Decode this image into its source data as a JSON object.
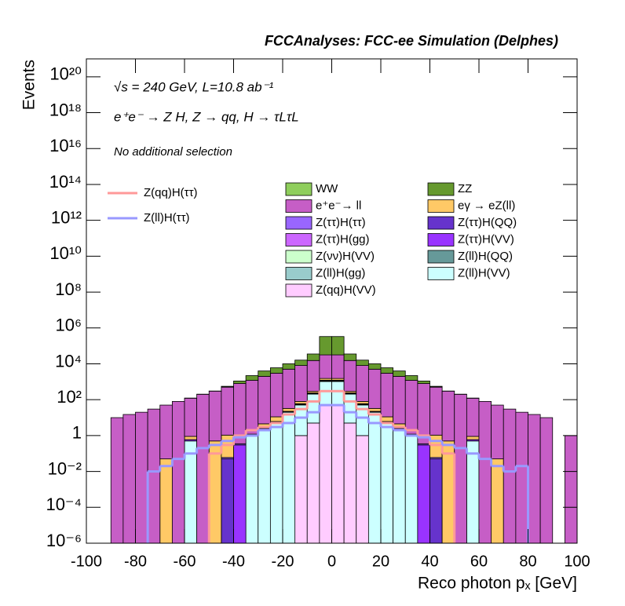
{
  "chart_data": {
    "type": "stacked-histogram",
    "title": "FCCAnalyses: FCC-ee Simulation (Delphes)",
    "x_label": "Reco photon pₓ [GeV]",
    "y_label": "Events",
    "annotations": [
      "√s = 240 GeV, L=10.8 ab⁻¹",
      "e⁺e⁻ → Z H, Z → qq, H → τLτL",
      "No additional selection"
    ],
    "log_y": true,
    "bins": [
      -100,
      -95,
      -90,
      -85,
      -80,
      -75,
      -70,
      -65,
      -60,
      -55,
      -50,
      -45,
      -40,
      -35,
      -30,
      -25,
      -20,
      -15,
      -10,
      -5,
      0,
      5,
      10,
      15,
      20,
      25,
      30,
      35,
      40,
      45,
      50,
      55,
      60,
      65,
      70,
      75,
      80,
      85,
      90,
      95,
      100
    ],
    "xlim": [
      -100,
      100
    ],
    "xticks": [
      -100,
      -80,
      -60,
      -40,
      -20,
      0,
      20,
      40,
      60,
      80,
      100
    ],
    "ylim": [
      1e-06,
      1e+21
    ],
    "yticks": [
      {
        "value": 1e-06,
        "label": "10⁻⁶"
      },
      {
        "value": 0.0001,
        "label": "10⁻⁴"
      },
      {
        "value": 0.01,
        "label": "10⁻²"
      },
      1,
      {
        "value": 100,
        "label": "10²"
      },
      {
        "value": 10000.0,
        "label": "10⁴"
      },
      {
        "value": 1000000.0,
        "label": "10⁶"
      },
      {
        "value": 100000000.0,
        "label": "10⁸"
      },
      {
        "value": 10000000000.0,
        "label": "10¹⁰"
      },
      {
        "value": 1000000000000.0,
        "label": "10¹²"
      },
      {
        "value": 100000000000000.0,
        "label": "10¹⁴"
      },
      {
        "value": 1e+16,
        "label": "10¹⁶"
      },
      {
        "value": 1e+18,
        "label": "10¹⁸"
      },
      {
        "value": 1e+20,
        "label": "10²⁰"
      }
    ],
    "series": [
      {
        "name": "WW",
        "color": "#8fce5c",
        "values": [
          0,
          0,
          0,
          0,
          0,
          0,
          0,
          0,
          2,
          2,
          2,
          2,
          0,
          0,
          0,
          0,
          0,
          0,
          0,
          0,
          0,
          0,
          0,
          0,
          0,
          0,
          0,
          0,
          2,
          2,
          2,
          2,
          0,
          0,
          0,
          0,
          0,
          0,
          0,
          0
        ]
      },
      {
        "name": "ZZ",
        "color": "#66992e",
        "values": [
          0,
          0,
          0,
          0,
          0,
          0,
          0,
          0,
          0,
          0,
          0,
          50,
          300,
          1000,
          2000,
          3000,
          5000,
          8000,
          20000,
          300000,
          300000,
          20000,
          8000,
          5000,
          3000,
          2000,
          1000,
          300,
          50,
          0,
          0,
          0,
          0,
          0,
          0,
          0,
          0,
          0,
          0,
          0
        ]
      },
      {
        "name": "e⁺e⁻→ ll",
        "color": "#c65ec6",
        "values": [
          0,
          0,
          10,
          15,
          20,
          30,
          50,
          80,
          120,
          200,
          300,
          500,
          800,
          1200,
          2000,
          3000,
          5000,
          8000,
          15000,
          30000,
          30000,
          15000,
          8000,
          5000,
          3000,
          2000,
          1200,
          800,
          500,
          300,
          200,
          120,
          80,
          50,
          30,
          20,
          15,
          10,
          0,
          1
        ]
      },
      {
        "name": "eγ → eZ(ll)",
        "color": "#ffc966",
        "values": [
          0,
          0,
          0,
          0,
          0,
          0,
          0.05,
          0,
          0.3,
          0,
          0.5,
          1,
          0,
          0,
          2,
          5,
          10,
          20,
          50,
          300,
          300,
          50,
          20,
          10,
          5,
          2,
          0,
          0,
          1,
          0.5,
          0,
          0.3,
          0,
          0.05,
          0,
          0,
          0,
          0,
          0,
          0
        ]
      },
      {
        "name": "Z(ττ)H(ττ)",
        "color": "#9966ff",
        "values": [
          0,
          0,
          0,
          0,
          0,
          0,
          0,
          0,
          0,
          0,
          0,
          0.01,
          0.05,
          0.2,
          0.5,
          1,
          2,
          5,
          20,
          100,
          100,
          20,
          5,
          2,
          1,
          0.5,
          0.2,
          0.05,
          0.01,
          0,
          0,
          0,
          0,
          0,
          0,
          0,
          0,
          0,
          0,
          0
        ]
      },
      {
        "name": "Z(ττ)H(QQ)",
        "color": "#6633cc",
        "values": [
          0,
          0,
          0,
          0,
          0,
          0,
          0,
          0,
          0,
          0,
          0,
          0.05,
          0,
          0,
          0,
          0,
          0.5,
          2,
          5,
          30,
          30,
          5,
          2,
          0.5,
          0,
          0,
          0,
          0,
          0.05,
          0,
          0,
          0,
          0,
          0,
          0,
          0,
          0,
          0,
          0,
          0
        ]
      },
      {
        "name": "Z(ττ)H(gg)",
        "color": "#cc66ff",
        "values": [
          0,
          0,
          0,
          0,
          0,
          0,
          0,
          0,
          0,
          0,
          0,
          0,
          0,
          0,
          0,
          0,
          0,
          1,
          3,
          10,
          10,
          3,
          1,
          0,
          0,
          0,
          0,
          0,
          0,
          0,
          0,
          0,
          0,
          0,
          0,
          0,
          0,
          0,
          0,
          0
        ]
      },
      {
        "name": "Z(ττ)H(VV)",
        "color": "#9933ff",
        "values": [
          0,
          0,
          0,
          0,
          0,
          0,
          0,
          0,
          0.1,
          0,
          0,
          0,
          0.3,
          0,
          0,
          0,
          0,
          1,
          5,
          20,
          20,
          5,
          1,
          0,
          0,
          0,
          0,
          0.3,
          0,
          0,
          0,
          0.1,
          0,
          0,
          0,
          0,
          0,
          0,
          0,
          0
        ]
      },
      {
        "name": "Z(νν)H(VV)",
        "color": "#ccffcc",
        "values": [
          0,
          0,
          0,
          0,
          0,
          0,
          0,
          0,
          0,
          0,
          0,
          0,
          0,
          0,
          0.02,
          0.1,
          0,
          0,
          2,
          10,
          10,
          2,
          0,
          0,
          0.1,
          0.02,
          0,
          0,
          0,
          0,
          0,
          0,
          0,
          0,
          0,
          0,
          0,
          0,
          0,
          0
        ]
      },
      {
        "name": "Z(ll)H(QQ)",
        "color": "#669999",
        "values": [
          0,
          0,
          0,
          0,
          0,
          0,
          0,
          0,
          0,
          0,
          0,
          0,
          0,
          0,
          0,
          0,
          0,
          0,
          1,
          5,
          5,
          1,
          0,
          0,
          0,
          0,
          0,
          0,
          0,
          0,
          0,
          0,
          0,
          0,
          0,
          0,
          0,
          0,
          0,
          0
        ]
      },
      {
        "name": "Z(ll)H(gg)",
        "color": "#99cccc",
        "values": [
          0,
          0,
          0,
          0,
          0,
          0,
          0,
          0,
          0,
          0,
          0,
          0,
          0,
          0,
          0,
          0,
          0,
          0,
          0.5,
          2,
          2,
          0.5,
          0,
          0,
          0,
          0,
          0,
          0,
          0,
          0,
          0,
          0,
          0,
          0,
          0,
          0,
          0,
          0,
          0,
          0
        ]
      },
      {
        "name": "Z(ll)H(VV)",
        "color": "#ccffff",
        "values": [
          0,
          0,
          0,
          0,
          0,
          0,
          0,
          0,
          0.5,
          0,
          0,
          0,
          0,
          1,
          2,
          5,
          20,
          50,
          200,
          1000,
          1000,
          200,
          50,
          20,
          5,
          2,
          1,
          0,
          0,
          0,
          0,
          0.5,
          0,
          0,
          0,
          0,
          0,
          0,
          0,
          0
        ]
      },
      {
        "name": "Z(qq)H(VV)",
        "color": "#ffccff",
        "values": [
          0,
          0,
          0,
          0,
          0,
          0,
          0,
          0,
          0,
          0,
          0,
          0,
          0,
          0,
          0,
          0,
          0,
          1,
          5,
          50,
          50,
          5,
          1,
          0,
          0,
          0,
          0,
          0,
          0,
          0,
          0,
          0,
          0,
          0,
          0,
          0,
          0,
          0,
          0,
          0
        ]
      }
    ],
    "lines": [
      {
        "name": "Z(qq)H(ττ)",
        "color": "#ff9999",
        "values": [
          null,
          null,
          null,
          null,
          null,
          null,
          null,
          null,
          null,
          null,
          0.1,
          0.3,
          1,
          2,
          3,
          5,
          15,
          30,
          80,
          300,
          300,
          80,
          30,
          15,
          5,
          3,
          2,
          1,
          0.3,
          0.1,
          null,
          null,
          null,
          null,
          null,
          null,
          null,
          null,
          null,
          null
        ]
      },
      {
        "name": "Z(ll)H(ττ)",
        "color": "#9999ff",
        "values": [
          null,
          null,
          null,
          null,
          null,
          0.01,
          0.02,
          0.05,
          0.1,
          0.2,
          0.3,
          0.5,
          0.8,
          1,
          2,
          3,
          5,
          10,
          20,
          50,
          50,
          20,
          10,
          5,
          3,
          2,
          1,
          0.8,
          0.5,
          0.3,
          0.2,
          0.1,
          0.05,
          0.02,
          0.01,
          0.02,
          null,
          null,
          null,
          null
        ]
      }
    ]
  }
}
